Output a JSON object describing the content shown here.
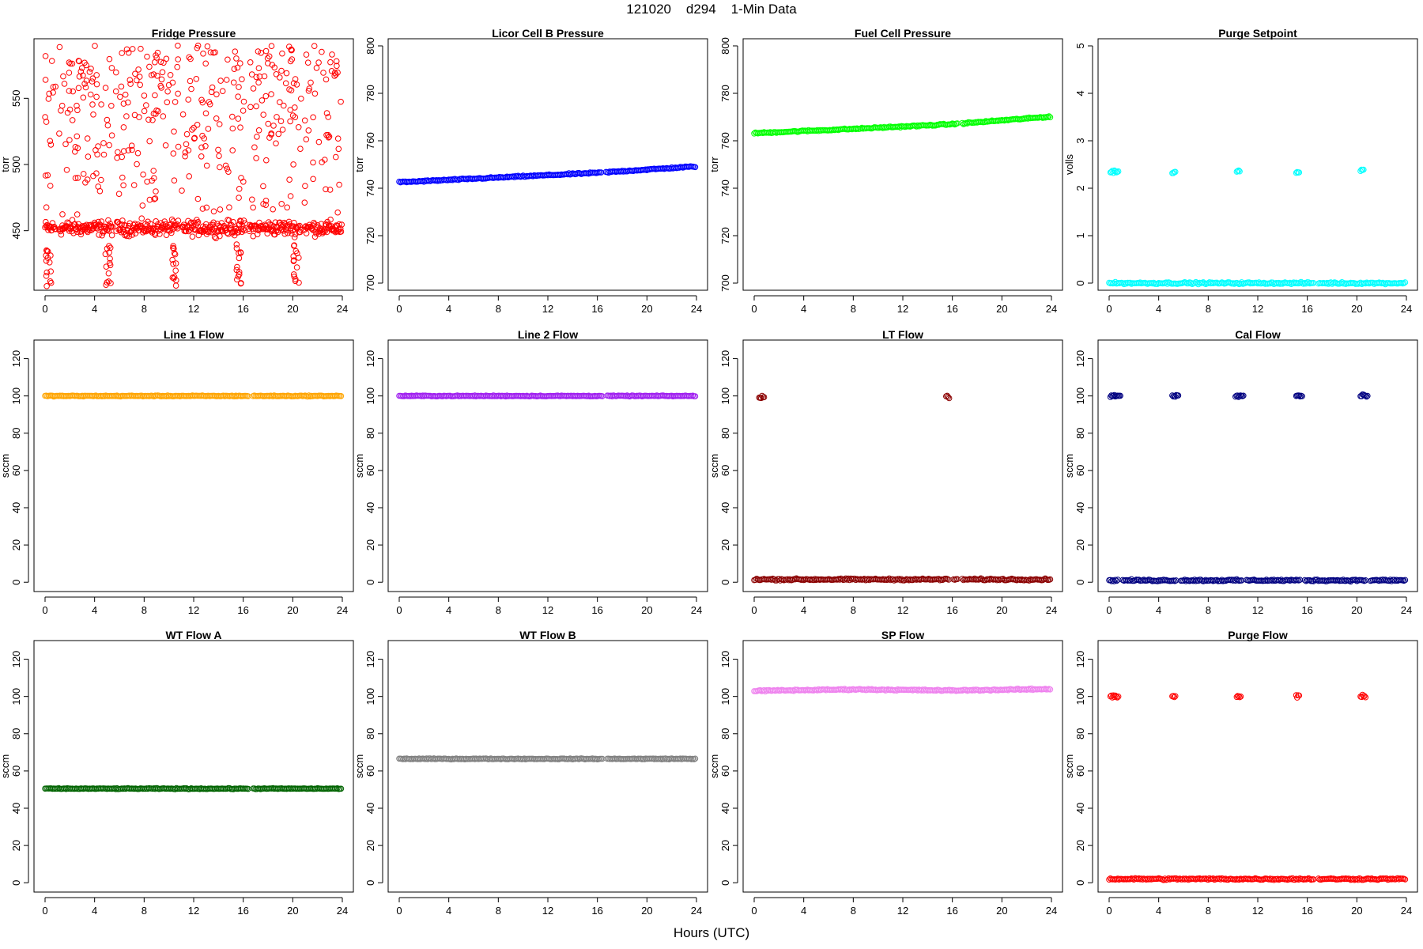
{
  "header": {
    "title": "121020    d294    1-Min Data"
  },
  "footer": {
    "xlabel": "Hours (UTC)"
  },
  "chart_data": [
    {
      "type": "scatter",
      "title": "Fridge Pressure",
      "xlabel": "",
      "ylabel": "torr",
      "xlim": [
        0,
        24
      ],
      "ylim": [
        405,
        595
      ],
      "xticks": [
        0,
        4,
        8,
        12,
        16,
        20,
        24
      ],
      "yticks": [
        450,
        500,
        550
      ],
      "color": "#ff0000",
      "pattern": "noisy-fridge",
      "base": 452,
      "spread": 6,
      "outlier_max": 590,
      "dip_min": 408,
      "dips": [
        0.4,
        5.2,
        10.5,
        15.8,
        20.4
      ],
      "gaps": [
        1.0,
        5.6,
        10.9,
        16.3,
        20.8
      ],
      "series": [
        {
          "x_range": [
            0,
            24
          ],
          "value_level": 452
        }
      ]
    },
    {
      "type": "scatter",
      "title": "Licor Cell B Pressure",
      "xlabel": "",
      "ylabel": "torr",
      "xlim": [
        0,
        24
      ],
      "ylim": [
        697,
        803
      ],
      "xticks": [
        0,
        4,
        8,
        12,
        16,
        20,
        24
      ],
      "yticks": [
        700,
        720,
        740,
        760,
        780,
        800
      ],
      "color": "#0000ff",
      "pattern": "trend",
      "x": [
        0,
        8,
        16,
        24
      ],
      "y": [
        742.5,
        744.5,
        746.5,
        749.2
      ],
      "gaps": [
        16.5
      ]
    },
    {
      "type": "scatter",
      "title": "Fuel Cell Pressure",
      "xlabel": "",
      "ylabel": "torr",
      "xlim": [
        0,
        24
      ],
      "ylim": [
        697,
        803
      ],
      "xticks": [
        0,
        4,
        8,
        12,
        16,
        20,
        24
      ],
      "yticks": [
        700,
        720,
        740,
        760,
        780,
        800
      ],
      "color": "#00ff00",
      "pattern": "trend",
      "x": [
        0,
        8,
        16,
        24
      ],
      "y": [
        763.2,
        765,
        767,
        770.2
      ],
      "gaps": [
        16.6
      ]
    },
    {
      "type": "scatter",
      "title": "Purge Setpoint",
      "xlabel": "",
      "ylabel": "volls",
      "xlim": [
        0,
        24
      ],
      "ylim": [
        -0.15,
        5.15
      ],
      "xticks": [
        0,
        4,
        8,
        12,
        16,
        20,
        24
      ],
      "yticks": [
        0,
        1,
        2,
        3,
        4,
        5
      ],
      "color": "#00ffff",
      "pattern": "base-with-pulses",
      "base": 0,
      "pulses": [
        {
          "x": [
            0.1,
            0.8
          ],
          "y": 2.35
        },
        {
          "x": [
            5.1,
            5.4
          ],
          "y": 2.33
        },
        {
          "x": [
            10.3,
            10.6
          ],
          "y": 2.37
        },
        {
          "x": [
            15.1,
            15.4
          ],
          "y": 2.33
        },
        {
          "x": [
            20.3,
            20.6
          ],
          "y": 2.38
        }
      ],
      "gaps": [
        16.7
      ]
    },
    {
      "type": "scatter",
      "title": "Line 1 Flow",
      "xlabel": "",
      "ylabel": "sccm",
      "xlim": [
        0,
        24
      ],
      "ylim": [
        -5,
        130
      ],
      "xticks": [
        0,
        4,
        8,
        12,
        16,
        20,
        24
      ],
      "yticks": [
        0,
        20,
        40,
        60,
        80,
        100,
        120
      ],
      "color": "#ffa500",
      "pattern": "flat",
      "value": 100,
      "gaps": [
        16.6
      ]
    },
    {
      "type": "scatter",
      "title": "Line 2 Flow",
      "xlabel": "",
      "ylabel": "sccm",
      "xlim": [
        0,
        24
      ],
      "ylim": [
        -5,
        130
      ],
      "xticks": [
        0,
        4,
        8,
        12,
        16,
        20,
        24
      ],
      "yticks": [
        0,
        20,
        40,
        60,
        80,
        100,
        120
      ],
      "color": "#a020f0",
      "pattern": "flat",
      "value": 100,
      "gaps": [
        16.6
      ]
    },
    {
      "type": "scatter",
      "title": "LT Flow",
      "xlabel": "",
      "ylabel": "sccm",
      "xlim": [
        0,
        24
      ],
      "ylim": [
        -5,
        130
      ],
      "xticks": [
        0,
        4,
        8,
        12,
        16,
        20,
        24
      ],
      "yticks": [
        0,
        20,
        40,
        60,
        80,
        100,
        120
      ],
      "color": "#8b0000",
      "pattern": "base-with-pulses",
      "base": 1.5,
      "pulses": [
        {
          "x": [
            0.4,
            0.8
          ],
          "y": 99.5
        },
        {
          "x": [
            15.5,
            15.8
          ],
          "y": 99.5
        }
      ],
      "gaps": [
        15.9,
        16.6
      ]
    },
    {
      "type": "scatter",
      "title": "Cal Flow",
      "xlabel": "",
      "ylabel": "sccm",
      "xlim": [
        0,
        24
      ],
      "ylim": [
        -5,
        130
      ],
      "xticks": [
        0,
        4,
        8,
        12,
        16,
        20,
        24
      ],
      "yticks": [
        0,
        20,
        40,
        60,
        80,
        100,
        120
      ],
      "color": "#000080",
      "pattern": "base-with-pulses",
      "base": 1,
      "pulses": [
        {
          "x": [
            0.1,
            0.9
          ],
          "y": 100
        },
        {
          "x": [
            5.1,
            5.6
          ],
          "y": 100
        },
        {
          "x": [
            10.2,
            10.9
          ],
          "y": 100
        },
        {
          "x": [
            15.1,
            15.6
          ],
          "y": 100
        },
        {
          "x": [
            20.3,
            20.9
          ],
          "y": 100
        }
      ],
      "gaps": [
        0.9,
        5.6,
        10.9,
        15.6,
        20.9
      ]
    },
    {
      "type": "scatter",
      "title": "WT Flow A",
      "xlabel": "",
      "ylabel": "sccm",
      "xlim": [
        0,
        24
      ],
      "ylim": [
        -5,
        130
      ],
      "xticks": [
        0,
        4,
        8,
        12,
        16,
        20,
        24
      ],
      "yticks": [
        0,
        20,
        40,
        60,
        80,
        100,
        120
      ],
      "color": "#006400",
      "pattern": "flat",
      "value": 50.5,
      "gaps": [
        16.6
      ]
    },
    {
      "type": "scatter",
      "title": "WT Flow B",
      "xlabel": "",
      "ylabel": "sccm",
      "xlim": [
        0,
        24
      ],
      "ylim": [
        -5,
        130
      ],
      "xticks": [
        0,
        4,
        8,
        12,
        16,
        20,
        24
      ],
      "yticks": [
        0,
        20,
        40,
        60,
        80,
        100,
        120
      ],
      "color": "#808080",
      "pattern": "flat",
      "value": 66.5,
      "gaps": [
        16.6
      ]
    },
    {
      "type": "scatter",
      "title": "SP Flow",
      "xlabel": "",
      "ylabel": "sccm",
      "xlim": [
        0,
        24
      ],
      "ylim": [
        -5,
        130
      ],
      "xticks": [
        0,
        4,
        8,
        12,
        16,
        20,
        24
      ],
      "yticks": [
        0,
        20,
        40,
        60,
        80,
        100,
        120
      ],
      "color": "#ee82ee",
      "pattern": "trend",
      "x": [
        0,
        8,
        16,
        24
      ],
      "y": [
        103,
        103.8,
        103.2,
        104
      ],
      "gaps": []
    },
    {
      "type": "scatter",
      "title": "Purge Flow",
      "xlabel": "",
      "ylabel": "sccm",
      "xlim": [
        0,
        24
      ],
      "ylim": [
        -5,
        130
      ],
      "xticks": [
        0,
        4,
        8,
        12,
        16,
        20,
        24
      ],
      "yticks": [
        0,
        20,
        40,
        60,
        80,
        100,
        120
      ],
      "color": "#ff0000",
      "pattern": "base-with-pulses",
      "base": 2,
      "pulses": [
        {
          "x": [
            0.1,
            0.8
          ],
          "y": 100
        },
        {
          "x": [
            5.1,
            5.4
          ],
          "y": 100
        },
        {
          "x": [
            10.3,
            10.7
          ],
          "y": 100
        },
        {
          "x": [
            15.1,
            15.4
          ],
          "y": 100
        },
        {
          "x": [
            20.3,
            20.7
          ],
          "y": 100
        }
      ],
      "gaps": [
        16.7
      ]
    }
  ]
}
